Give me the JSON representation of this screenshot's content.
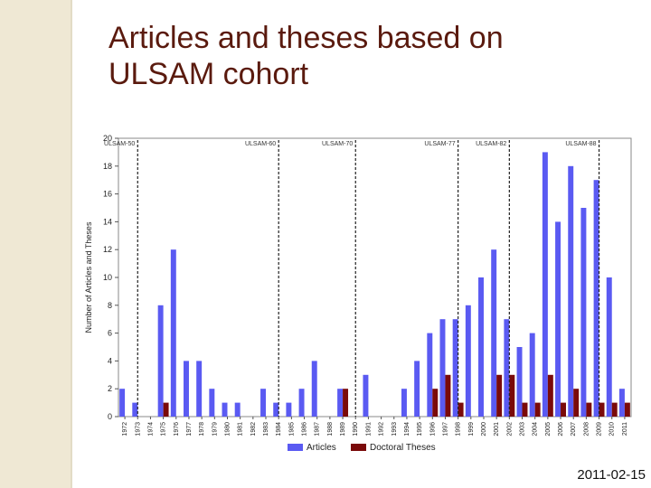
{
  "slide": {
    "title_line1": "Articles and theses based on",
    "title_line2": "ULSAM cohort",
    "date": "2011-02-15"
  },
  "colors": {
    "articles": "#5a5af2",
    "theses": "#7a0a0a",
    "title": "#5a1a0e",
    "side_strip": "#efe8d4"
  },
  "chart_data": {
    "type": "bar",
    "ylabel": "Number of Articles and Theses",
    "xlabel": "",
    "ylim": [
      0,
      20
    ],
    "yticks": [
      0,
      2,
      4,
      6,
      8,
      10,
      12,
      14,
      16,
      18,
      20
    ],
    "grid": false,
    "legend": "bottom",
    "categories": [
      "1972",
      "1973",
      "1974",
      "1975",
      "1976",
      "1977",
      "1978",
      "1979",
      "1980",
      "1981",
      "1982",
      "1983",
      "1984",
      "1985",
      "1986",
      "1987",
      "1988",
      "1989",
      "1990",
      "1991",
      "1992",
      "1993",
      "1994",
      "1995",
      "1996",
      "1997",
      "1998",
      "1999",
      "2000",
      "2001",
      "2002",
      "2003",
      "2004",
      "2005",
      "2006",
      "2007",
      "2008",
      "2009",
      "2010",
      "2011"
    ],
    "series": [
      {
        "name": "Articles",
        "values": [
          2,
          1,
          0,
          8,
          12,
          4,
          4,
          2,
          1,
          1,
          0,
          2,
          1,
          1,
          2,
          4,
          0,
          2,
          0,
          3,
          0,
          0,
          2,
          4,
          6,
          7,
          7,
          8,
          10,
          12,
          7,
          5,
          6,
          19,
          14,
          18,
          15,
          17,
          10,
          2
        ]
      },
      {
        "name": "Doctoral Theses",
        "values": [
          0,
          0,
          0,
          1,
          0,
          0,
          0,
          0,
          0,
          0,
          0,
          0,
          0,
          0,
          0,
          0,
          0,
          2,
          0,
          0,
          0,
          0,
          0,
          0,
          2,
          3,
          1,
          0,
          0,
          3,
          3,
          1,
          1,
          3,
          1,
          2,
          1,
          1,
          1,
          1
        ]
      }
    ],
    "annotations": [
      "ULSAM-50",
      "ULSAM-60",
      "ULSAM-70",
      "ULSAM-77",
      "ULSAM-82",
      "ULSAM-88"
    ],
    "annotation_positions": [
      1973.5,
      1984.5,
      1990.5,
      1998.5,
      2002.5,
      2009.5
    ]
  }
}
